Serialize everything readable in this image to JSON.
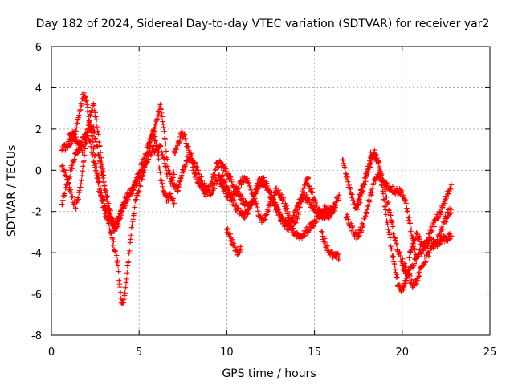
{
  "chart_data": {
    "type": "scatter",
    "title": "Day 182 of 2024, Sidereal Day-to-day VTEC variation (SDTVAR) for receiver yar2",
    "xlabel": "GPS time / hours",
    "ylabel": "SDTVAR / TECUs",
    "xlim": [
      0,
      25
    ],
    "ylim": [
      -8,
      6
    ],
    "xticks": [
      0,
      5,
      10,
      15,
      20,
      25
    ],
    "yticks": [
      -8,
      -6,
      -4,
      -2,
      0,
      2,
      4,
      6
    ],
    "xtick_labels": [
      "0",
      "5",
      "10",
      "15",
      "20",
      "25"
    ],
    "ytick_labels": [
      "-8",
      "-6",
      "-4",
      "-2",
      "0",
      "2",
      "4",
      "6"
    ],
    "grid": true,
    "marker": "+",
    "color": "#ff0000",
    "series": [
      {
        "name": "s1",
        "x": [
          0.6,
          0.8,
          1.0,
          1.2,
          1.4,
          1.6,
          1.8,
          2.0,
          2.2,
          2.4,
          2.6,
          2.8,
          3.0,
          3.2,
          3.4,
          3.6,
          3.8,
          4.0,
          4.2,
          4.4,
          4.6,
          4.8,
          5.0,
          5.2,
          5.4,
          5.6,
          5.8,
          6.0,
          6.2,
          6.4,
          6.6,
          6.8,
          7.0
        ],
        "y": [
          -1.7,
          -1.0,
          -0.4,
          0.3,
          0.8,
          1.1,
          1.5,
          1.8,
          1.4,
          0.6,
          -0.4,
          -1.2,
          -1.9,
          -2.5,
          -3.1,
          -3.8,
          -4.6,
          -6.6,
          -6.0,
          -4.3,
          -2.6,
          -1.5,
          -0.9,
          -0.2,
          0.5,
          1.2,
          1.8,
          2.4,
          3.2,
          2.1,
          0.4,
          -0.5,
          -0.2
        ]
      },
      {
        "name": "s2",
        "x": [
          0.6,
          0.8,
          1.0,
          1.2,
          1.4,
          1.6,
          1.8,
          2.0,
          2.2,
          2.4,
          2.6,
          2.8,
          3.0,
          3.2,
          3.4,
          3.6,
          3.8,
          4.0,
          4.2,
          4.4,
          4.6,
          4.8,
          5.0,
          5.2,
          5.4,
          5.6,
          5.8,
          6.0,
          6.2,
          6.4,
          6.6
        ],
        "y": [
          0.1,
          -0.2,
          -0.8,
          -1.4,
          -1.8,
          -1.1,
          0.2,
          1.6,
          2.6,
          3.2,
          2.2,
          0.8,
          -0.5,
          -1.6,
          -2.5,
          -2.9,
          -2.6,
          -2.0,
          -1.4,
          -1.1,
          -0.9,
          -0.6,
          -0.3,
          0.0,
          0.4,
          0.8,
          1.0,
          1.0,
          1.1,
          0.6,
          -0.3
        ]
      },
      {
        "name": "s3",
        "x": [
          0.6,
          0.8,
          1.0,
          1.2,
          1.4,
          1.6,
          1.8,
          2.0,
          2.2,
          2.4,
          2.6,
          2.8,
          3.0,
          3.2,
          3.4,
          3.6,
          3.8,
          4.0,
          4.2,
          4.4,
          4.6,
          4.8,
          5.0,
          5.2,
          5.4,
          5.6,
          5.8,
          6.0,
          6.2,
          6.4,
          6.6,
          6.8,
          7.0
        ],
        "y": [
          1.0,
          1.1,
          1.3,
          1.5,
          2.0,
          2.7,
          3.7,
          3.3,
          2.3,
          1.2,
          0.0,
          -1.0,
          -1.6,
          -2.1,
          -2.4,
          -2.7,
          -2.4,
          -2.0,
          -1.6,
          -1.3,
          -1.0,
          -0.6,
          -0.2,
          0.3,
          0.8,
          1.4,
          1.8,
          1.2,
          -0.2,
          -1.0,
          -1.4,
          -1.2,
          -1.6
        ]
      },
      {
        "name": "s4",
        "x": [
          1.0,
          1.2,
          1.4,
          1.6,
          1.8,
          2.0,
          2.2,
          2.4,
          2.6,
          2.8,
          3.0,
          3.2,
          3.4,
          3.6
        ],
        "y": [
          1.6,
          1.7,
          1.5,
          1.2,
          1.0,
          1.6,
          2.2,
          2.0,
          1.2,
          0.3,
          -0.7,
          -1.4,
          -2.2,
          -2.8
        ]
      },
      {
        "name": "s5",
        "x": [
          6.8,
          7.0,
          7.2,
          7.4,
          7.6,
          7.8,
          8.0,
          8.2,
          8.4,
          8.6,
          8.8,
          9.0,
          9.2,
          9.4,
          9.6,
          9.8,
          10.0,
          10.2,
          10.4,
          10.6,
          10.8,
          11.0,
          11.2,
          11.4,
          11.6,
          11.8,
          12.0,
          12.2,
          12.4,
          12.6,
          12.8,
          13.0,
          13.2,
          13.4,
          13.6,
          13.8,
          14.0,
          14.2,
          14.4,
          14.6,
          14.8,
          15.0,
          15.2,
          15.4,
          15.6,
          15.8,
          16.0,
          16.2
        ],
        "y": [
          -0.4,
          -0.7,
          -0.9,
          -0.4,
          0.3,
          0.7,
          0.4,
          -0.2,
          -0.6,
          -0.9,
          -1.1,
          -0.9,
          -0.4,
          0.2,
          0.3,
          0.2,
          -0.1,
          -0.4,
          -0.7,
          -1.0,
          -1.3,
          -1.6,
          -1.8,
          -1.6,
          -1.2,
          -0.8,
          -0.6,
          -0.7,
          -1.0,
          -1.3,
          -1.7,
          -2.1,
          -2.4,
          -2.6,
          -2.5,
          -2.2,
          -1.8,
          -1.4,
          -1.2,
          -1.4,
          -1.7,
          -1.9,
          -2.0,
          -2.0,
          -1.9,
          -2.1,
          -2.0,
          -1.8
        ]
      },
      {
        "name": "s6",
        "x": [
          7.0,
          7.2,
          7.4,
          7.6,
          7.8,
          8.0,
          8.2,
          8.4,
          8.6,
          8.8,
          9.0,
          9.2,
          9.4,
          9.6,
          9.8,
          10.0,
          10.2,
          10.4,
          10.6,
          10.8,
          11.0,
          11.2,
          11.4,
          11.6,
          11.8,
          12.0,
          12.2,
          12.4,
          12.6,
          12.8,
          13.0,
          13.2,
          13.4,
          13.6,
          13.8,
          14.0,
          14.2,
          14.4,
          14.6,
          14.8,
          15.0,
          15.2,
          15.4,
          15.6,
          15.8,
          16.0
        ],
        "y": [
          0.8,
          1.2,
          1.8,
          1.6,
          1.0,
          0.6,
          0.2,
          -0.2,
          -0.6,
          -0.9,
          -1.1,
          -0.9,
          -0.5,
          -0.3,
          -0.4,
          -0.8,
          -1.2,
          -1.6,
          -1.9,
          -2.1,
          -2.2,
          -2.0,
          -1.6,
          -1.1,
          -0.6,
          -0.4,
          -0.6,
          -1.0,
          -1.4,
          -1.8,
          -2.2,
          -2.5,
          -2.7,
          -2.9,
          -3.0,
          -3.1,
          -3.2,
          -3.1,
          -2.9,
          -2.7,
          -2.5,
          -2.3,
          -2.1,
          -2.0,
          -1.9,
          -1.9
        ]
      },
      {
        "name": "s7",
        "x": [
          9.6,
          9.8,
          10.0,
          10.2,
          10.4,
          10.6,
          10.8,
          11.0,
          11.2,
          11.4,
          11.6,
          11.8,
          12.0,
          12.2,
          12.4,
          12.6,
          12.8,
          13.0,
          13.2,
          13.4,
          13.6,
          13.8,
          14.0,
          14.2,
          14.4,
          14.6,
          14.8,
          15.0,
          15.2,
          15.4,
          15.6,
          15.8,
          16.0,
          16.2,
          16.4
        ],
        "y": [
          -0.6,
          -0.9,
          -1.2,
          -1.3,
          -1.2,
          -0.9,
          -0.6,
          -0.4,
          -0.6,
          -1.0,
          -1.5,
          -2.0,
          -2.4,
          -2.3,
          -1.8,
          -1.3,
          -1.0,
          -1.1,
          -1.4,
          -1.9,
          -2.4,
          -2.7,
          -2.3,
          -1.6,
          -0.8,
          -0.4,
          -0.9,
          -1.5,
          -2.0,
          -2.2,
          -2.3,
          -2.2,
          -2.0,
          -1.6,
          -1.2
        ]
      },
      {
        "name": "s8",
        "x": [
          10.0,
          10.2,
          10.4,
          10.6,
          10.8
        ],
        "y": [
          -2.8,
          -3.2,
          -3.7,
          -4.0,
          -3.7
        ]
      },
      {
        "name": "s9",
        "x": [
          15.4,
          15.6,
          15.8,
          16.0,
          16.2,
          16.4
        ],
        "y": [
          -3.0,
          -3.5,
          -3.9,
          -4.1,
          -4.2,
          -4.2
        ]
      },
      {
        "name": "s10",
        "x": [
          16.6,
          16.8,
          17.0,
          17.2,
          17.4,
          17.6,
          17.8,
          18.0,
          18.2,
          18.4,
          18.6,
          18.8,
          19.0,
          19.2,
          19.4,
          19.6,
          19.8,
          20.0,
          20.2,
          20.4,
          20.6,
          20.8,
          21.0,
          21.2,
          21.4,
          21.6,
          21.8,
          22.0,
          22.2,
          22.4,
          22.6,
          22.8
        ],
        "y": [
          0.6,
          -0.2,
          -0.9,
          -1.5,
          -1.8,
          -1.4,
          -0.8,
          -0.2,
          0.4,
          0.8,
          0.5,
          -0.4,
          -1.6,
          -2.8,
          -3.9,
          -4.9,
          -5.6,
          -5.9,
          -5.4,
          -4.9,
          -4.6,
          -4.3,
          -4.0,
          -3.8,
          -3.6,
          -3.4,
          -3.5,
          -3.6,
          -3.4,
          -3.3,
          -3.3,
          -3.2
        ]
      },
      {
        "name": "s11",
        "x": [
          16.8,
          17.0,
          17.2,
          17.4,
          17.6,
          17.8,
          18.0,
          18.2,
          18.4,
          18.6,
          18.8,
          19.0,
          19.2,
          19.4,
          19.6,
          19.8,
          20.0,
          20.2,
          20.4,
          20.6,
          20.8
        ],
        "y": [
          -2.2,
          -2.6,
          -2.9,
          -3.2,
          -3.0,
          -2.5,
          -1.9,
          -1.2,
          -0.6,
          -0.3,
          -0.4,
          -0.6,
          -0.8,
          -0.9,
          -1.0,
          -1.0,
          -1.1,
          -1.6,
          -2.4,
          -3.4,
          -4.4
        ]
      },
      {
        "name": "s12",
        "x": [
          17.4,
          17.6,
          17.8,
          18.0,
          18.2,
          18.4,
          18.6,
          18.8,
          19.0,
          19.2,
          19.4,
          19.6,
          19.8,
          20.0,
          20.2,
          20.4
        ],
        "y": [
          -1.8,
          -1.2,
          -0.6,
          0.0,
          0.7,
          0.9,
          0.4,
          -0.2,
          -0.9,
          -1.7,
          -2.6,
          -3.4,
          -4.0,
          -4.4,
          -4.8,
          -5.0
        ]
      },
      {
        "name": "s13",
        "x": [
          20.4,
          20.6,
          20.8,
          21.0,
          21.2,
          21.4,
          21.6,
          21.8,
          22.0,
          22.2,
          22.4,
          22.6,
          22.8
        ],
        "y": [
          -4.1,
          -3.6,
          -3.1,
          -3.4,
          -3.8,
          -3.5,
          -3.0,
          -2.6,
          -2.3,
          -2.0,
          -1.6,
          -1.1,
          -0.7
        ]
      },
      {
        "name": "s14",
        "x": [
          20.0,
          20.2,
          20.4,
          20.6,
          20.8,
          21.0,
          21.2,
          21.4,
          21.6,
          21.8,
          22.0,
          22.2,
          22.4,
          22.6,
          22.8
        ],
        "y": [
          -4.6,
          -4.9,
          -5.2,
          -5.5,
          -5.4,
          -5.0,
          -4.5,
          -4.2,
          -3.9,
          -3.7,
          -3.4,
          -3.0,
          -2.5,
          -2.1,
          -1.9
        ]
      }
    ]
  }
}
